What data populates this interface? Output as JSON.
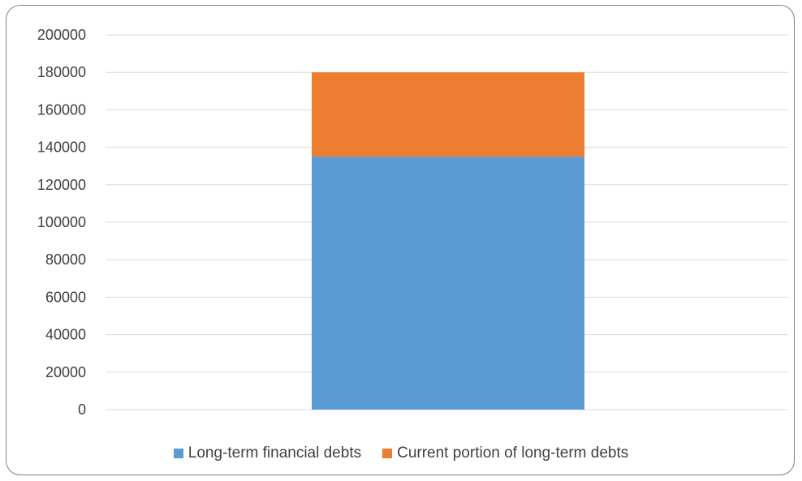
{
  "chart_data": {
    "type": "bar",
    "stacked": true,
    "categories": [
      ""
    ],
    "series": [
      {
        "name": "Long-term financial debts",
        "values": [
          135000
        ],
        "color": "#5b9bd5"
      },
      {
        "name": "Current portion of long-term debts",
        "values": [
          45000
        ],
        "color": "#ed7d31"
      }
    ],
    "ylim": [
      0,
      200000
    ],
    "yticks": [
      0,
      20000,
      40000,
      60000,
      80000,
      100000,
      120000,
      140000,
      160000,
      180000,
      200000
    ],
    "ytick_labels": [
      "0",
      "20000",
      "40000",
      "60000",
      "80000",
      "100000",
      "120000",
      "140000",
      "160000",
      "180000",
      "200000"
    ],
    "grid": true,
    "legend_position": "bottom"
  }
}
